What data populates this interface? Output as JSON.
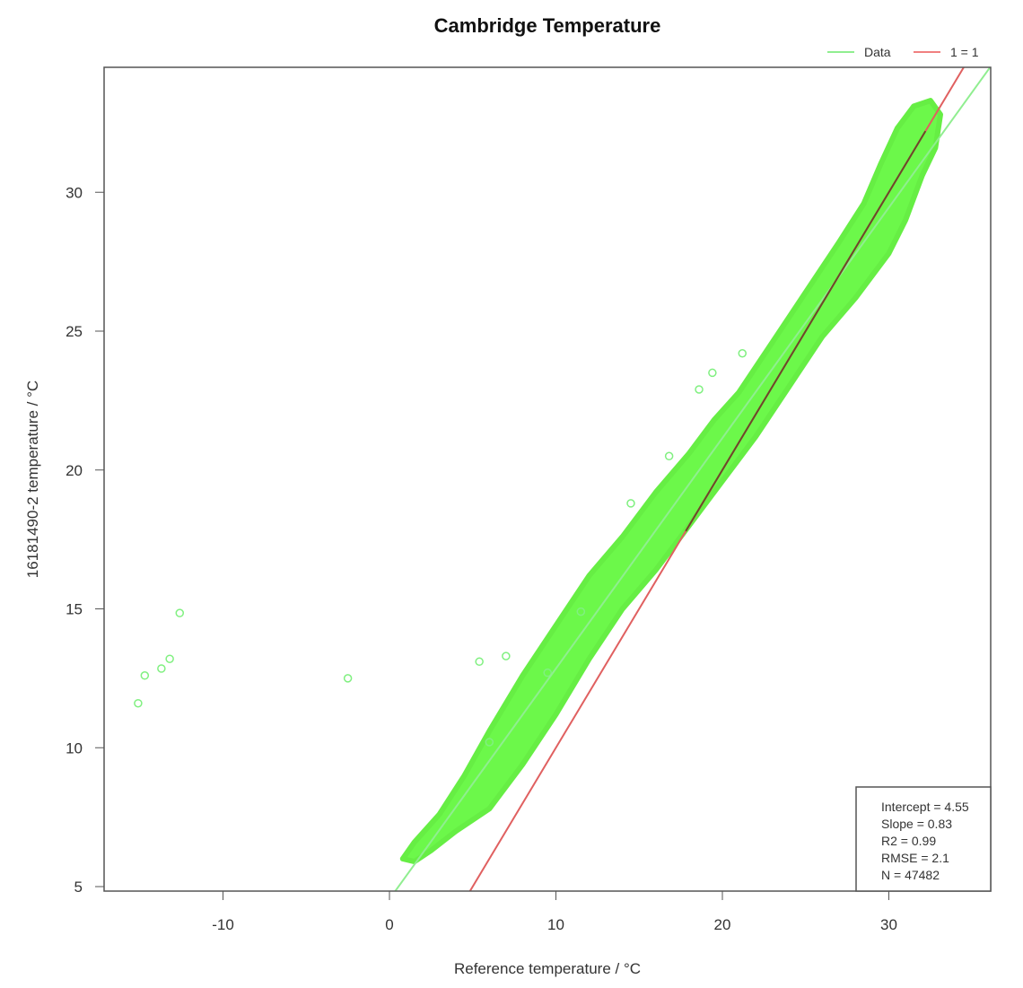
{
  "chart_data": {
    "type": "scatter",
    "title": "Cambridge Temperature",
    "xlabel": "Reference  temperature / °C",
    "ylabel": "16181490-2  temperature / °C",
    "xlim": [
      -17,
      36.4
    ],
    "ylim": [
      4.85,
      34.5
    ],
    "x_ticks": [
      -10,
      0,
      10,
      20,
      30
    ],
    "y_ticks": [
      5,
      10,
      15,
      20,
      25,
      30
    ],
    "grid": false,
    "legend": {
      "position": "top-right, outside plot",
      "entries": [
        {
          "label": "Data",
          "color": "#90ee90",
          "style": "line"
        },
        {
          "label": "1 = 1",
          "color": "#f08080",
          "style": "line"
        }
      ]
    },
    "series": [
      {
        "name": "Data",
        "marker": "open-circle",
        "color": "#66ff44",
        "cloud_outline": [
          [
            0.8,
            6.0
          ],
          [
            1.5,
            6.6
          ],
          [
            3,
            7.6
          ],
          [
            4.5,
            9
          ],
          [
            6,
            10.6
          ],
          [
            8,
            12.6
          ],
          [
            10,
            14.4
          ],
          [
            12,
            16.2
          ],
          [
            14,
            17.6
          ],
          [
            16,
            19.2
          ],
          [
            18,
            20.6
          ],
          [
            19.5,
            21.8
          ],
          [
            21,
            22.8
          ],
          [
            23,
            24.6
          ],
          [
            25,
            26.4
          ],
          [
            27,
            28.2
          ],
          [
            28.5,
            29.6
          ],
          [
            29.5,
            31
          ],
          [
            30.5,
            32.3
          ],
          [
            31.5,
            33.1
          ],
          [
            32.5,
            33.3
          ],
          [
            33.1,
            32.8
          ],
          [
            32.8,
            31.6
          ],
          [
            32,
            30.6
          ],
          [
            31,
            29
          ],
          [
            30,
            27.8
          ],
          [
            28,
            26.2
          ],
          [
            26,
            24.8
          ],
          [
            24,
            23
          ],
          [
            22,
            21.2
          ],
          [
            20,
            19.6
          ],
          [
            18,
            18
          ],
          [
            16,
            16.4
          ],
          [
            14,
            15
          ],
          [
            12,
            13.2
          ],
          [
            10,
            11.2
          ],
          [
            8,
            9.4
          ],
          [
            6,
            7.8
          ],
          [
            4,
            7
          ],
          [
            2.5,
            6.3
          ],
          [
            1.5,
            5.9
          ]
        ],
        "outliers": [
          [
            -15.1,
            11.6
          ],
          [
            -14.7,
            12.6
          ],
          [
            -13.7,
            12.85
          ],
          [
            -13.2,
            13.2
          ],
          [
            -12.6,
            14.85
          ],
          [
            -2.5,
            12.5
          ],
          [
            5.4,
            13.1
          ],
          [
            7,
            13.3
          ],
          [
            18.6,
            22.9
          ],
          [
            19.4,
            23.5
          ],
          [
            21.2,
            24.2
          ],
          [
            16.8,
            20.5
          ],
          [
            14.5,
            18.8
          ],
          [
            6,
            10.2
          ],
          [
            9.5,
            12.7
          ],
          [
            11.5,
            14.9
          ]
        ]
      }
    ],
    "lines": [
      {
        "name": "Data fit",
        "intercept": 4.55,
        "slope": 0.83,
        "color": "#90ee90"
      },
      {
        "name": "1 = 1",
        "intercept": 0,
        "slope": 1,
        "color": "#e06060"
      }
    ],
    "annotation": {
      "position": "bottom-right",
      "lines": [
        "Intercept = 4.55",
        "Slope = 0.83",
        "R2 = 0.99",
        "RMSE = 2.1",
        "N = 47482"
      ]
    }
  }
}
